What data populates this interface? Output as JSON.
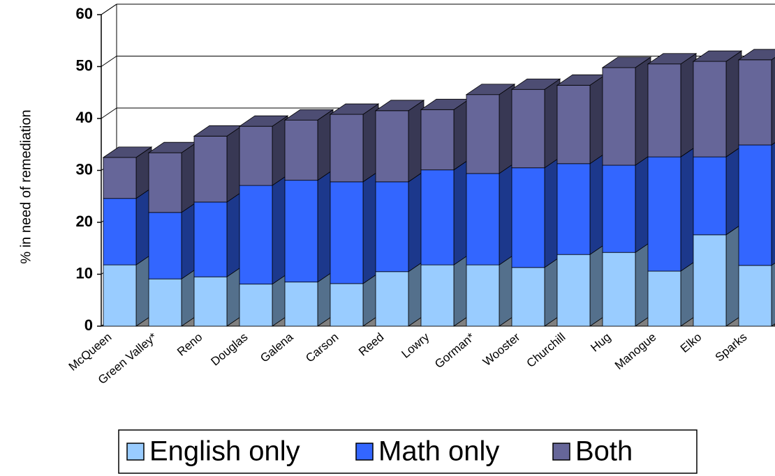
{
  "chart_data": {
    "type": "bar3d_stacked",
    "y_label": "% in need of remediation",
    "categories": [
      "McQueen",
      "Green Valley*",
      "Reno",
      "Douglas",
      "Galena",
      "Carson",
      "Reed",
      "Lowry",
      "Gorman*",
      "Wooster",
      "Churchill",
      "Hug",
      "Manogue",
      "Elko",
      "Sparks"
    ],
    "series": [
      {
        "name": "English only",
        "color": "#99ccff",
        "values": [
          11.8,
          9.1,
          9.5,
          8.1,
          8.5,
          8.2,
          10.5,
          11.8,
          11.8,
          11.3,
          13.8,
          14.2,
          10.6,
          17.6,
          11.7
        ]
      },
      {
        "name": "Math only",
        "color": "#3366ff",
        "values": [
          12.8,
          12.8,
          14.4,
          19,
          19.6,
          19.6,
          17.3,
          18.3,
          17.6,
          19.2,
          17.5,
          16.8,
          22,
          15,
          23.2
        ]
      },
      {
        "name": "Both",
        "color": "#666699",
        "values": [
          7.9,
          11.5,
          12.7,
          11.4,
          11.6,
          13,
          13.7,
          11.6,
          15.2,
          15.1,
          15.1,
          18.8,
          17.9,
          18.4,
          16.4
        ]
      }
    ],
    "ylim": [
      0,
      60
    ],
    "yticks": [
      0,
      10,
      20,
      30,
      40,
      50,
      60
    ],
    "grid": true
  }
}
